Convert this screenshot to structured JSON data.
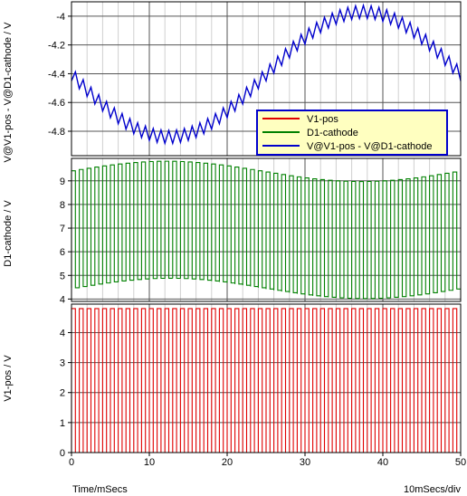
{
  "chart_data": {
    "type": "line",
    "x_axis": {
      "label": "Time/mSecs",
      "scale_note": "10mSecs/div",
      "xlim": [
        0,
        50
      ],
      "ticks": [
        "0",
        "10",
        "20",
        "30",
        "40",
        "50"
      ],
      "minor_grid_step": 2
    },
    "panels": [
      {
        "ylabel": "V@V1-pos - V@D1-cathode / V",
        "ylim": [
          -4.97,
          -3.9
        ],
        "ticks": [
          "-4.8",
          "-4.6",
          "-4.4",
          "-4.2",
          "-4"
        ],
        "tick_values": [
          -4.8,
          -4.6,
          -4.4,
          -4.2,
          -4.0
        ],
        "grid": true,
        "series": [
          {
            "name": "V@V1-pos - V@D1-cathode",
            "color": "#0000cc",
            "kind": "sine_with_ripple",
            "mean": -4.405,
            "amplitude": 0.435,
            "period_ms": 50,
            "min_at_ms": 12.5,
            "ripple_amplitude": 0.045,
            "ripple_period_ms": 1
          }
        ]
      },
      {
        "ylabel": "D1-cathode / V",
        "ylim": [
          3.9,
          9.95
        ],
        "ticks": [
          "4",
          "5",
          "6",
          "7",
          "8",
          "9"
        ],
        "tick_values": [
          4,
          5,
          6,
          7,
          8,
          9
        ],
        "grid": true,
        "series": [
          {
            "name": "D1-cathode",
            "color": "#008000",
            "kind": "square_with_sine_offset",
            "high_mean": 9.4,
            "low_mean": 4.45,
            "offset_amplitude": 0.43,
            "offset_period_ms": 50,
            "offset_max_at_ms": 12.5,
            "period_ms": 1
          }
        ]
      },
      {
        "ylabel": "V1-pos / V",
        "ylim": [
          0,
          4.95
        ],
        "ticks": [
          "0",
          "1",
          "2",
          "3",
          "4"
        ],
        "tick_values": [
          0,
          1,
          2,
          3,
          4
        ],
        "grid": true,
        "series": [
          {
            "name": "V1-pos",
            "color": "#e00000",
            "kind": "square",
            "high": 4.8,
            "low": 0,
            "period_ms": 1
          }
        ]
      }
    ],
    "legend": {
      "placement": "top panel, lower right",
      "background": "#ffffc0",
      "border": "#0000cc",
      "entries": [
        {
          "label": "V1-pos",
          "color": "#e00000"
        },
        {
          "label": "D1-cathode",
          "color": "#008000"
        },
        {
          "label": "V@V1-pos - V@D1-cathode",
          "color": "#0000cc"
        }
      ]
    }
  }
}
